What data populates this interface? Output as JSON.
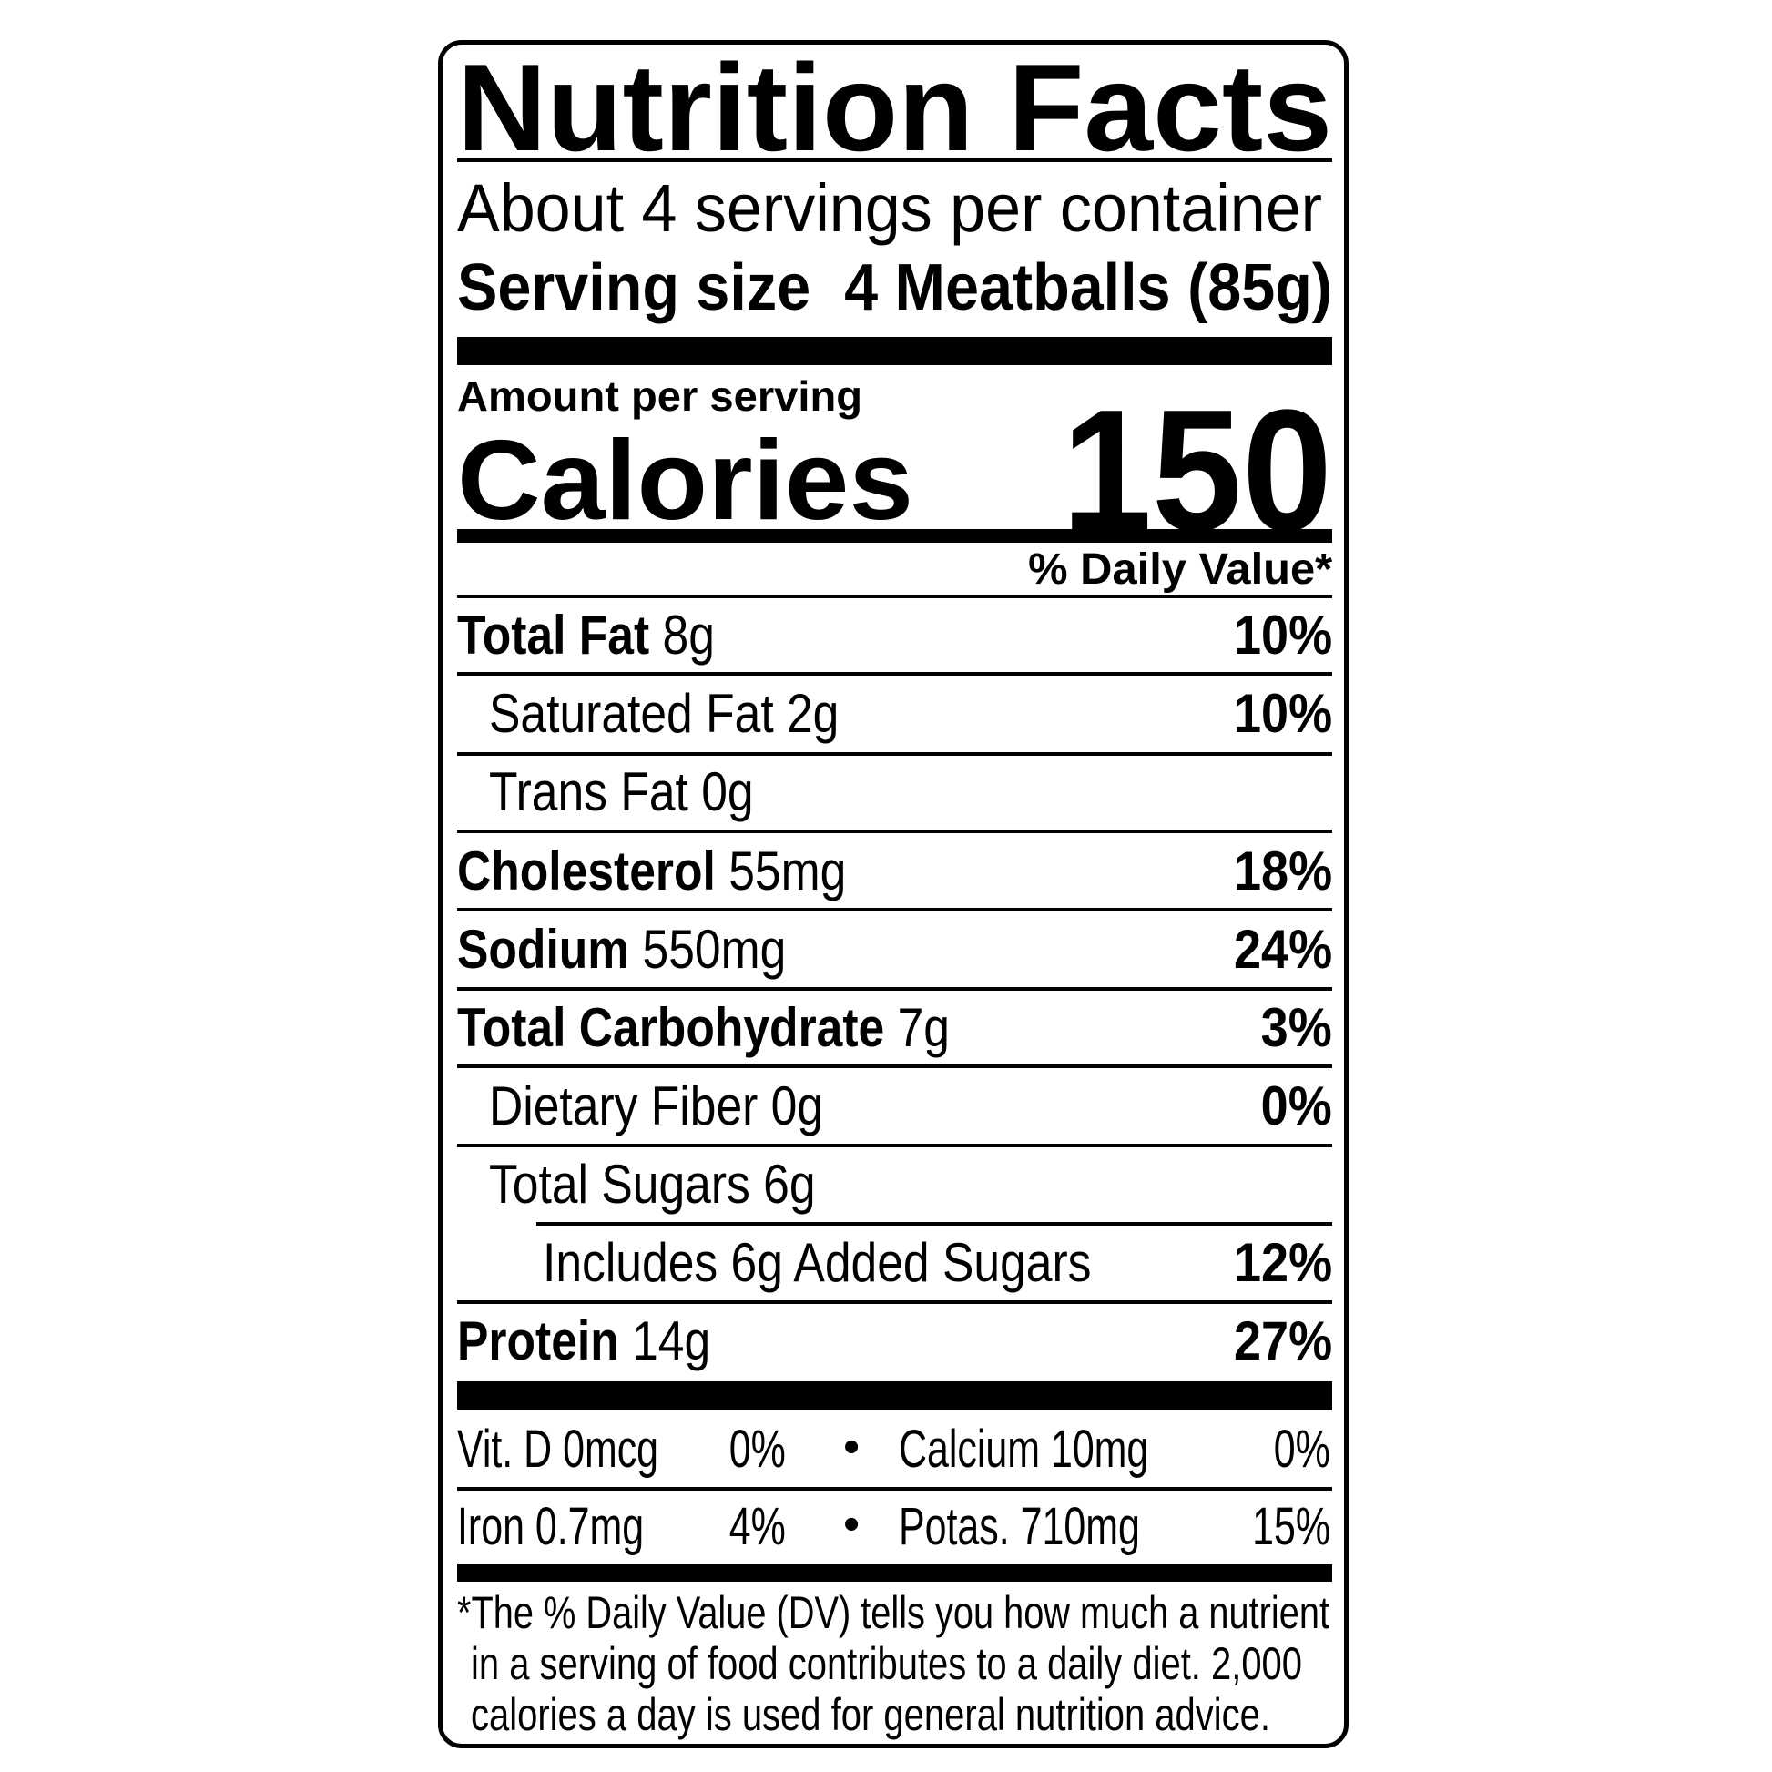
{
  "label": {
    "title": "Nutrition Facts",
    "servings_per_container": "About 4 servings per container",
    "serving_size_label": "Serving size",
    "serving_size_value": "4 Meatballs (85g)",
    "amount_per_serving": "Amount per serving",
    "calories_label": "Calories",
    "calories_value": "150",
    "daily_value_header": "% Daily Value*",
    "nutrients": [
      {
        "name": "Total Fat",
        "amount": "8g",
        "dv": "10%"
      },
      {
        "name": "Saturated Fat",
        "amount": "2g",
        "dv": "10%"
      },
      {
        "name": "Trans Fat",
        "amount": "0g",
        "dv": ""
      },
      {
        "name": "Cholesterol",
        "amount": "55mg",
        "dv": "18%"
      },
      {
        "name": "Sodium",
        "amount": "550mg",
        "dv": "24%"
      },
      {
        "name": "Total Carbohydrate",
        "amount": "7g",
        "dv": "3%"
      },
      {
        "name": "Dietary Fiber",
        "amount": "0g",
        "dv": "0%"
      },
      {
        "name": "Total Sugars",
        "amount": "6g",
        "dv": ""
      },
      {
        "name": "Includes 6g Added Sugars",
        "amount": "",
        "dv": "12%"
      },
      {
        "name": "Protein",
        "amount": "14g",
        "dv": "27%"
      }
    ],
    "micronutrients": [
      {
        "name": "Vit. D 0mcg",
        "dv": "0%"
      },
      {
        "name": "Calcium 10mg",
        "dv": "0%"
      },
      {
        "name": "Iron 0.7mg",
        "dv": "4%"
      },
      {
        "name": "Potas. 710mg",
        "dv": "15%"
      }
    ],
    "bullet": "•",
    "footnote": [
      "*The % Daily Value (DV) tells you how much a nutrient",
      "in a serving of food contributes to a daily diet. 2,000",
      "calories a day is used for general nutrition advice."
    ]
  }
}
